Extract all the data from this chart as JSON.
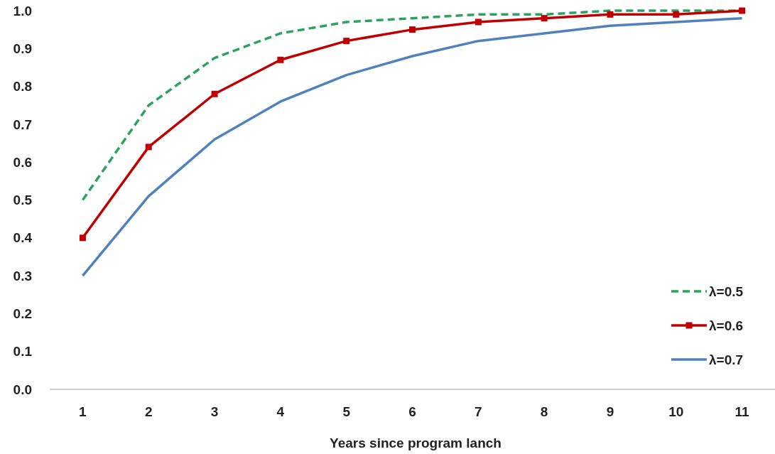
{
  "chart_data": {
    "type": "line",
    "xlabel": "Years since program lanch",
    "categories": [
      "1",
      "2",
      "3",
      "4",
      "5",
      "6",
      "7",
      "8",
      "9",
      "10",
      "11"
    ],
    "ylim": [
      0,
      1
    ],
    "yticks": [
      {
        "value": 0,
        "label": "0.0"
      },
      {
        "value": 0.1,
        "label": "0.1"
      },
      {
        "value": 0.2,
        "label": "0.2"
      },
      {
        "value": 0.3,
        "label": "0.3"
      },
      {
        "value": 0.4,
        "label": "0.4"
      },
      {
        "value": 0.5,
        "label": "0.5"
      },
      {
        "value": 0.6,
        "label": "0.6"
      },
      {
        "value": 0.7,
        "label": "0.7"
      },
      {
        "value": 0.8,
        "label": "0.8"
      },
      {
        "value": 0.9,
        "label": "0.9"
      },
      {
        "value": 1,
        "label": "1.0"
      }
    ],
    "grid": false,
    "legend": "bottom right",
    "series": [
      {
        "name": "λ=0.5",
        "color": "#2ca25f",
        "line_style": "dashed",
        "marker": "none",
        "values": [
          0.5,
          0.75,
          0.875,
          0.94,
          0.97,
          0.98,
          0.99,
          0.99,
          1.0,
          1.0,
          1.0
        ]
      },
      {
        "name": "λ=0.6",
        "color": "#c00000",
        "line_style": "solid",
        "marker": "square",
        "values": [
          0.4,
          0.64,
          0.78,
          0.87,
          0.92,
          0.95,
          0.97,
          0.98,
          0.99,
          0.99,
          1.0
        ]
      },
      {
        "name": "λ=0.7",
        "color": "#4f81bd",
        "line_style": "solid",
        "marker": "none",
        "values": [
          0.3,
          0.51,
          0.66,
          0.76,
          0.83,
          0.88,
          0.92,
          0.94,
          0.96,
          0.97,
          0.98
        ]
      }
    ]
  }
}
